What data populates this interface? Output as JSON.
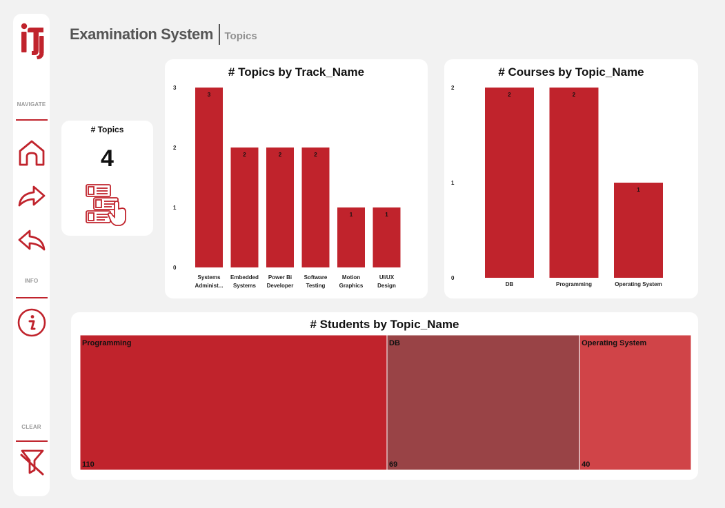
{
  "header": {
    "title": "Examination System",
    "subtitle": "Topics"
  },
  "sidebar": {
    "logo": "iti",
    "navigate_label": "NAVIGATE",
    "info_label": "INFO",
    "clear_label": "CLEAR",
    "icons": [
      "home-icon",
      "forward-icon",
      "back-icon",
      "info-icon",
      "clear-filter-icon"
    ]
  },
  "kpi": {
    "label": "# Topics",
    "value": "4",
    "icon": "numbered-list-icon"
  },
  "colors": {
    "bar": "#c0232c",
    "treemap": [
      "#c0232c",
      "#994346",
      "#d04448"
    ]
  },
  "chart_data": [
    {
      "type": "bar",
      "title": "# Topics by Track_Name",
      "categories": [
        "Systems Administ...",
        "Embedded Systems",
        "Power Bi Developer",
        "Software Testing",
        "Motion Graphics",
        "UI/UX Design"
      ],
      "category_lines": [
        [
          "Systems",
          "Administ..."
        ],
        [
          "Embedded",
          "Systems"
        ],
        [
          "Power Bi",
          "Developer"
        ],
        [
          "Software",
          "Testing"
        ],
        [
          "Motion",
          "Graphics"
        ],
        [
          "UI/UX",
          "Design"
        ]
      ],
      "values": [
        3,
        2,
        2,
        2,
        1,
        1
      ],
      "yticks": [
        0,
        1,
        2,
        3
      ],
      "ylim": [
        0,
        3
      ]
    },
    {
      "type": "bar",
      "title": "# Courses by Topic_Name",
      "categories": [
        "DB",
        "Programming",
        "Operating System"
      ],
      "category_lines": [
        [
          "DB"
        ],
        [
          "Programming"
        ],
        [
          "Operating System"
        ]
      ],
      "values": [
        2,
        2,
        1
      ],
      "yticks": [
        0,
        1,
        2
      ],
      "ylim": [
        0,
        2
      ]
    },
    {
      "type": "treemap",
      "title": "# Students by Topic_Name",
      "categories": [
        "Programming",
        "DB",
        "Operating System"
      ],
      "values": [
        110,
        69,
        40
      ]
    }
  ]
}
